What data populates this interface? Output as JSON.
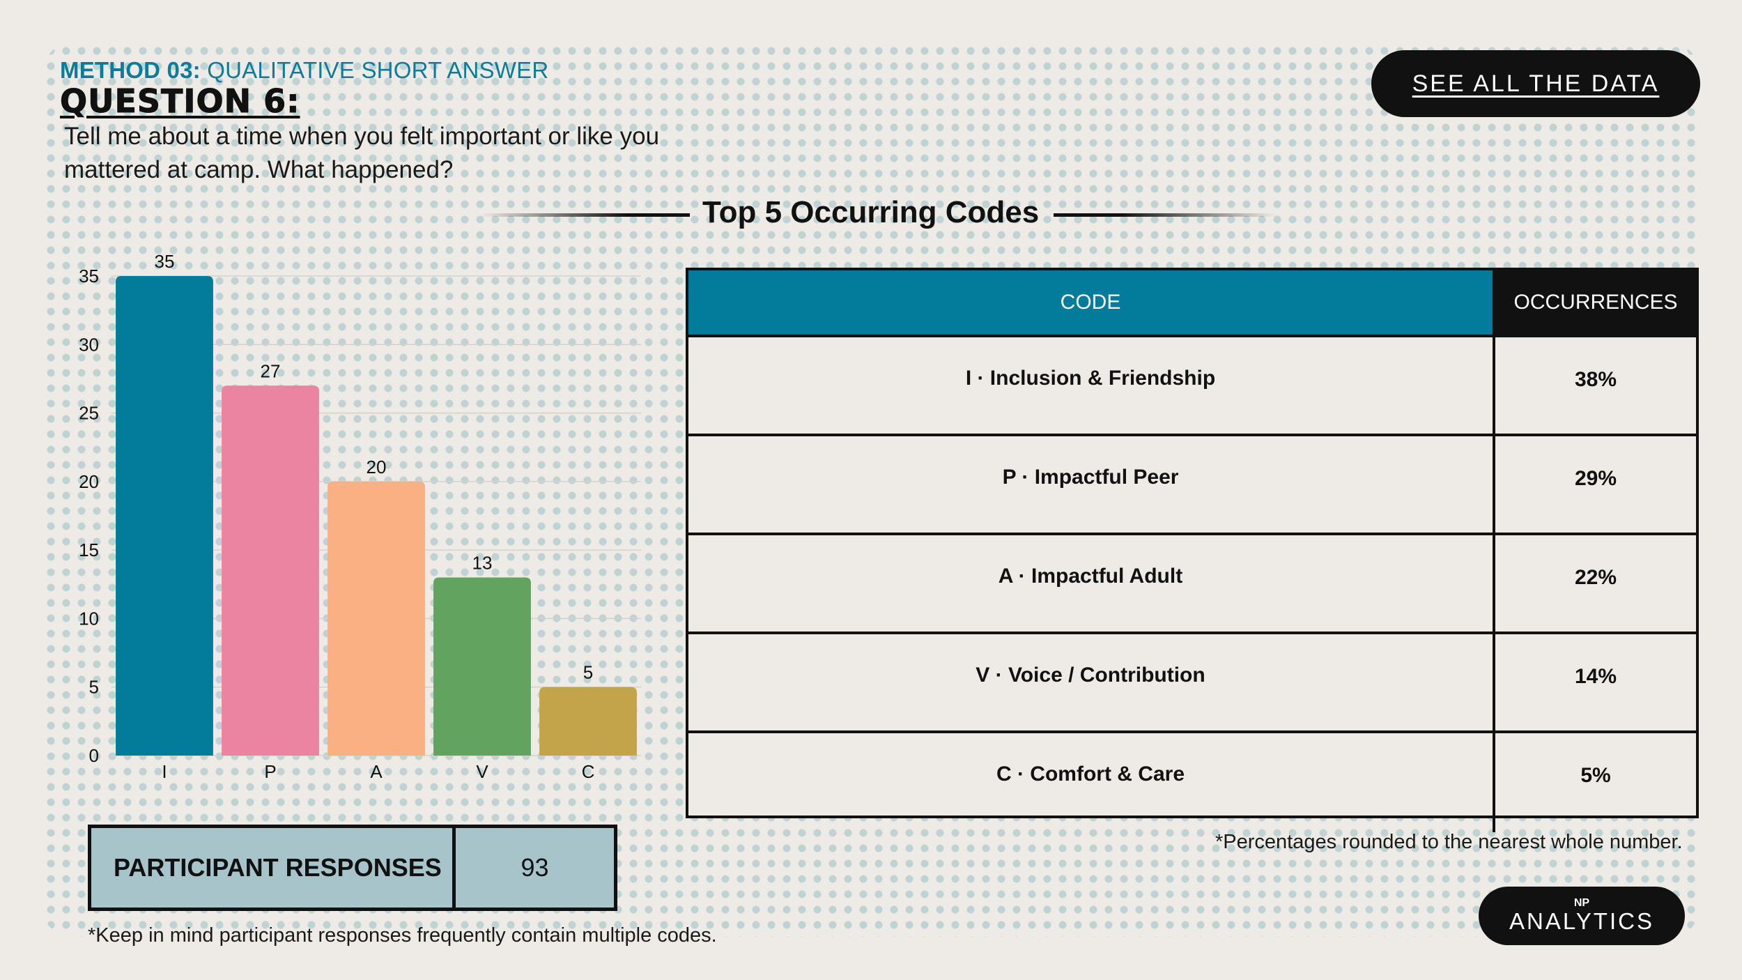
{
  "header": {
    "method_prefix": "METHOD 03:",
    "method_label": "QUALITATIVE SHORT ANSWER",
    "question_title": "QUESTION 6:",
    "question_text": "Tell me about a time when you felt important or like you mattered at camp. What happened?"
  },
  "see_all_button": "SEE ALL THE DATA",
  "section_title": "Top 5 Occurring Codes",
  "table": {
    "headers": [
      "CODE",
      "OCCURRENCES"
    ],
    "rows": [
      {
        "code": "I · Inclusion & Friendship",
        "occurrences": "38%"
      },
      {
        "code": "P · Impactful Peer",
        "occurrences": "29%"
      },
      {
        "code": "A · Impactful Adult",
        "occurrences": "22%"
      },
      {
        "code": "V · Voice / Contribution",
        "occurrences": "14%"
      },
      {
        "code": "C · Comfort & Care",
        "occurrences": "5%"
      }
    ],
    "note": "*Percentages rounded to the nearest whole number."
  },
  "participant_responses": {
    "label": "PARTICIPANT RESPONSES",
    "value": "93",
    "note": "*Keep in mind participant responses frequently contain multiple codes."
  },
  "logo": {
    "mark": "NP",
    "wordmark": "ANALYTICS"
  },
  "chart_data": {
    "type": "bar",
    "categories": [
      "I",
      "P",
      "A",
      "V",
      "C"
    ],
    "values": [
      35,
      27,
      20,
      13,
      5
    ],
    "colors": [
      "#037c9c",
      "#eb84a1",
      "#fbb083",
      "#61a35f",
      "#c4a44a"
    ],
    "ylim": [
      0,
      35
    ],
    "yticks": [
      0,
      5,
      10,
      15,
      20,
      25,
      30,
      35
    ],
    "grid": true,
    "data_labels": true
  }
}
